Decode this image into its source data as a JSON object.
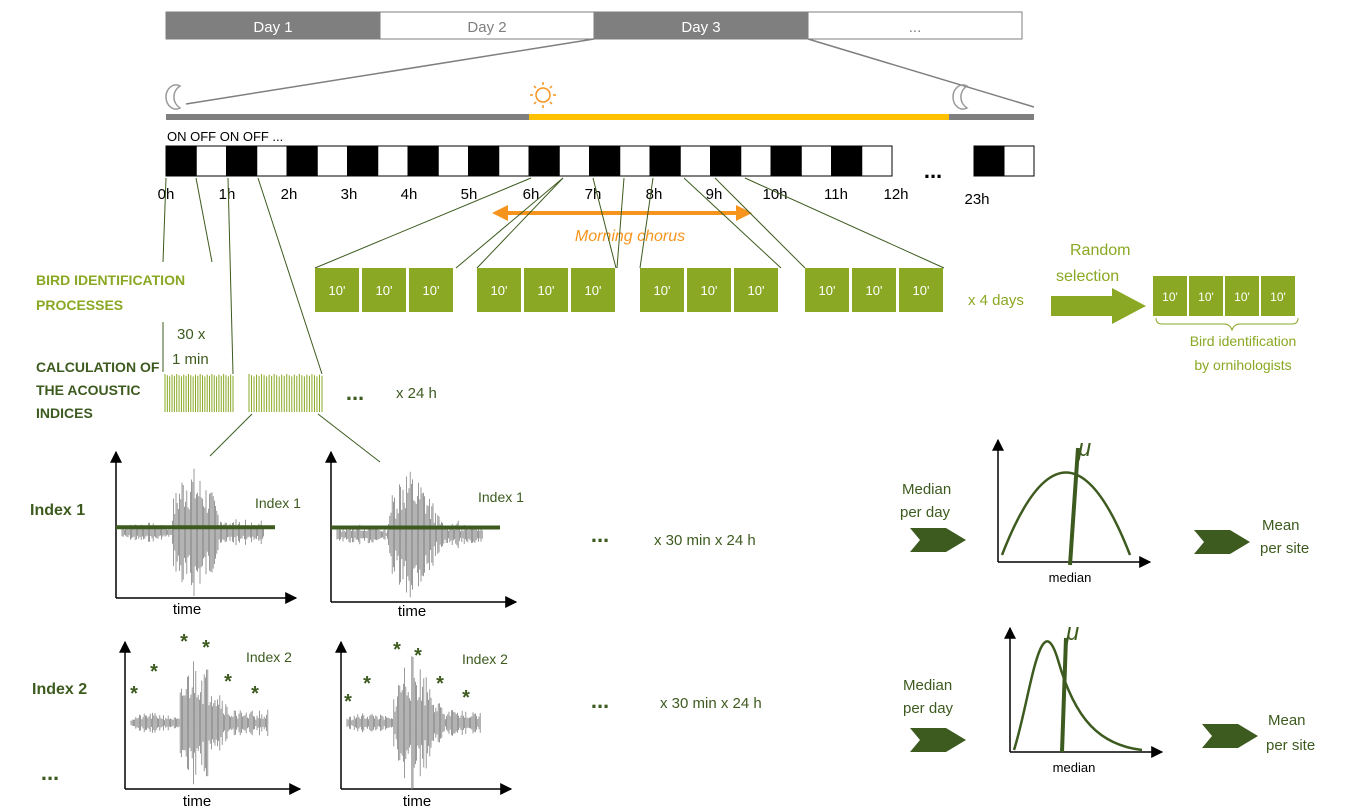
{
  "days": [
    "Day 1",
    "Day 2",
    "Day 3",
    "..."
  ],
  "on_off_label": "ON OFF ON OFF ...",
  "hours": [
    "0h",
    "1h",
    "2h",
    "3h",
    "4h",
    "5h",
    "6h",
    "7h",
    "8h",
    "9h",
    "10h",
    "11h",
    "12h"
  ],
  "hour_last": "23h",
  "timeline_ellipsis": "...",
  "morning_chorus": "Morning chorus",
  "bird_process": [
    "BIRD IDENTIFICATION",
    "PROCESSES"
  ],
  "acoustic_process": [
    "CALCULATION OF",
    "THE ACOUSTIC",
    "INDICES"
  ],
  "ten_min_label": "10'",
  "group_count": 4,
  "x4days": "x 4 days",
  "random_selection": [
    "Random",
    "selection"
  ],
  "bird_id_label": [
    "Bird identification",
    "by ornihologists"
  ],
  "sample_label": [
    "30 x",
    "1 min"
  ],
  "ellipsis": "...",
  "x24h": "x 24 h",
  "index1": {
    "row_label": "Index 1",
    "plot_label": "Index 1",
    "axis": "time",
    "repeat": "x 30 min x 24 h",
    "median_per_day": [
      "Median",
      "per day"
    ],
    "mu": "μ",
    "median": "median",
    "mean_per_site": [
      "Mean",
      "per site"
    ]
  },
  "index2": {
    "row_label": "Index 2",
    "plot_label": "Index 2",
    "axis": "time",
    "repeat": "x 30 min x 24 h",
    "median_per_day": [
      "Median",
      "per day"
    ],
    "mu": "μ",
    "median": "median",
    "mean_per_site": [
      "Mean",
      "per site"
    ]
  },
  "more_indices": "...",
  "colors": {
    "dark_green": "#3d5b1f",
    "light_green": "#8aa823",
    "orange": "#f7941d",
    "yellow": "#ffc000",
    "gray": "#7f7f7f",
    "wave": "#808080"
  }
}
